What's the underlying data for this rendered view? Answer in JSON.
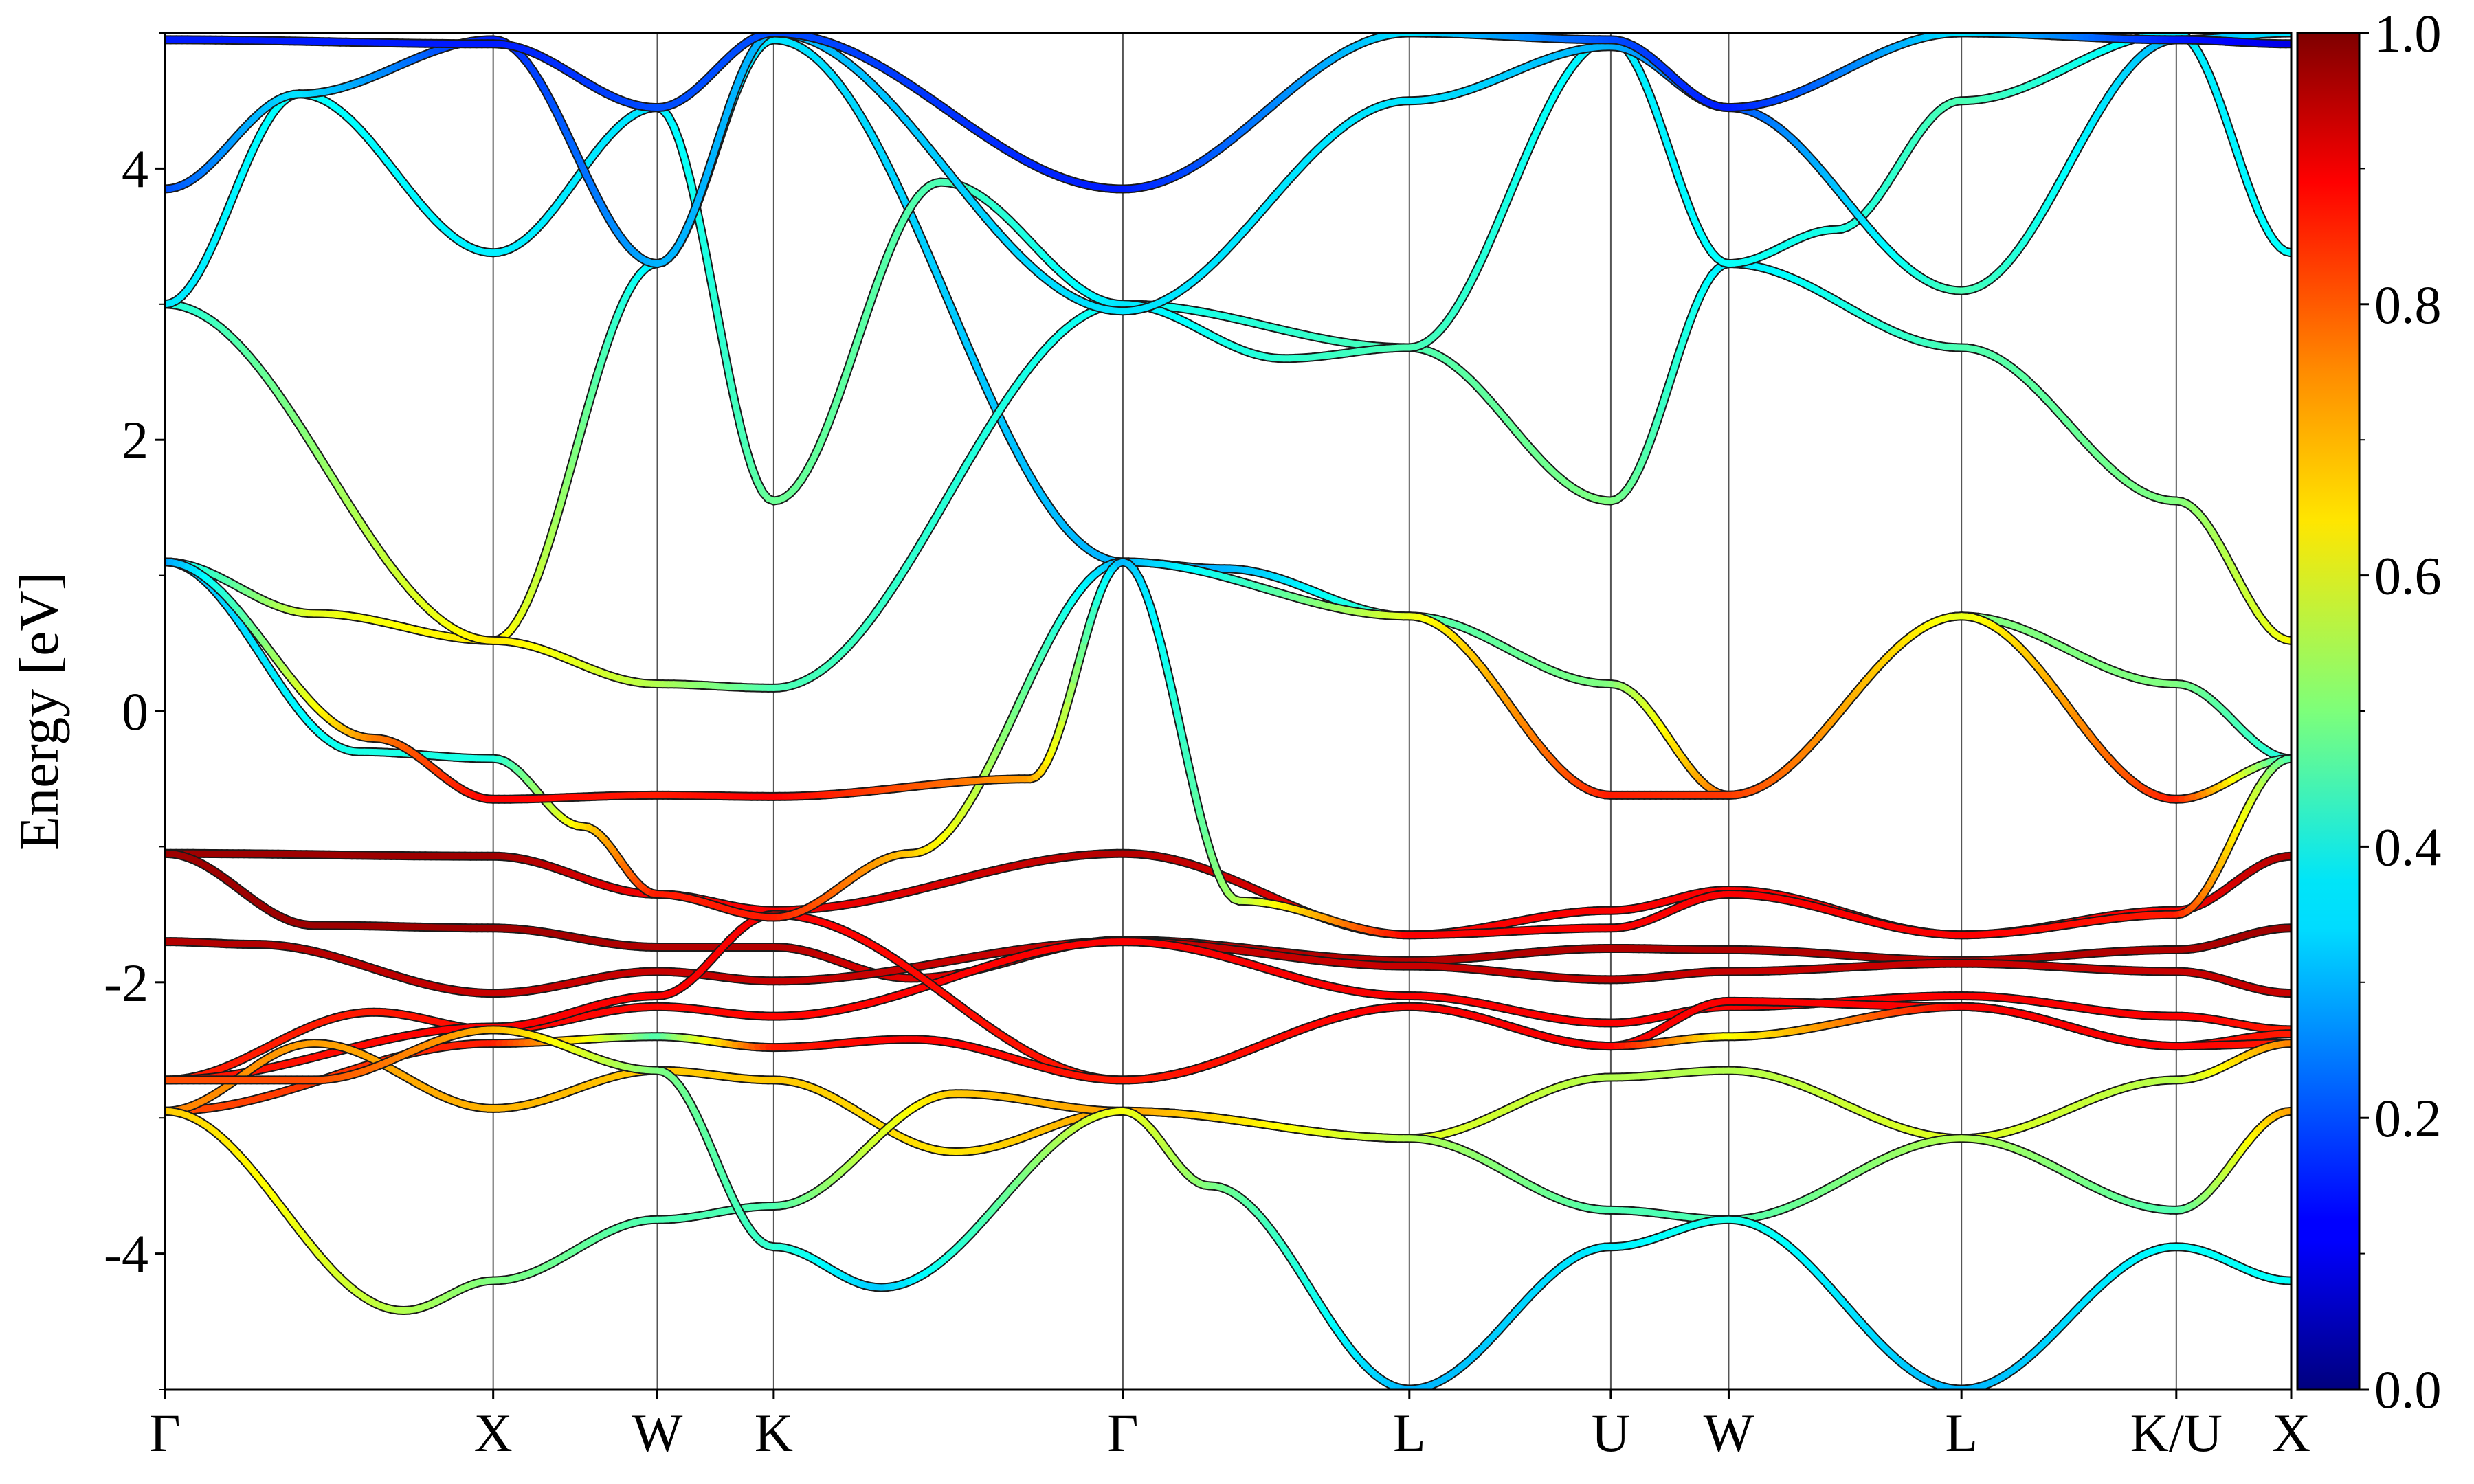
{
  "chart_data": {
    "type": "line",
    "title": "",
    "xlabel": "",
    "ylabel": "Energy [eV]",
    "xlim": [
      0,
      14.25
    ],
    "ylim": [
      -5,
      5
    ],
    "yticks": [
      -4,
      -2,
      0,
      2,
      4
    ],
    "yticklabels": [
      "-4",
      "-2",
      "0",
      "2",
      "4"
    ],
    "kpoints": [
      {
        "label": "Γ",
        "x": 0
      },
      {
        "label": "X",
        "x": 2.2
      },
      {
        "label": "W",
        "x": 3.3
      },
      {
        "label": "K",
        "x": 4.08
      },
      {
        "label": "Γ",
        "x": 6.42
      },
      {
        "label": "L",
        "x": 8.34
      },
      {
        "label": "U",
        "x": 9.69
      },
      {
        "label": "W",
        "x": 10.48
      },
      {
        "label": "L",
        "x": 12.04
      },
      {
        "label": "K/U",
        "x": 13.48
      },
      {
        "label": "X",
        "x": 14.25
      }
    ],
    "colorbar": {
      "colormap": "jet",
      "range": [
        0,
        1
      ],
      "ticks": [
        0.0,
        0.2,
        0.4,
        0.6,
        0.8,
        1.0
      ],
      "ticklabels": [
        "0.0",
        "0.2",
        "0.4",
        "0.6",
        "0.8",
        "1.0"
      ]
    },
    "grid": false,
    "series": [
      {
        "x": [
          0,
          2.2,
          3.3,
          4.08,
          6.42,
          8.34,
          9.69,
          10.48,
          12.04,
          13.48,
          14.25
        ],
        "y": [
          -1.05,
          -1.07,
          -1.35,
          -1.47,
          -1.05,
          -1.65,
          -1.47,
          -1.32,
          -1.65,
          -1.47,
          -1.07
        ],
        "c": [
          0.97,
          0.97,
          0.88,
          0.88,
          0.95,
          0.88,
          0.88,
          0.88,
          0.88,
          0.88,
          0.95
        ]
      },
      {
        "x": [
          0,
          1.0,
          2.2,
          3.3,
          4.08,
          5.0,
          6.42,
          8.34,
          9.69,
          10.48,
          12.04,
          13.48,
          14.25
        ],
        "y": [
          -1.05,
          -1.58,
          -1.6,
          -1.74,
          -1.74,
          -1.97,
          -1.69,
          -1.84,
          -1.75,
          -1.76,
          -1.84,
          -1.76,
          -1.6
        ],
        "c": [
          0.97,
          0.97,
          0.97,
          0.95,
          0.95,
          0.9,
          0.95,
          0.95,
          0.95,
          0.95,
          0.95,
          0.95,
          0.97
        ]
      },
      {
        "x": [
          0,
          0.6,
          2.2,
          3.3,
          4.08,
          6.42,
          8.34,
          9.69,
          10.48,
          12.04,
          13.48,
          14.25
        ],
        "y": [
          -1.7,
          -1.72,
          -2.08,
          -1.92,
          -1.99,
          -1.7,
          -1.88,
          -1.98,
          -1.92,
          -1.86,
          -1.92,
          -2.08
        ],
        "c": [
          0.95,
          0.95,
          0.93,
          0.93,
          0.93,
          0.93,
          0.93,
          0.93,
          0.93,
          0.93,
          0.93,
          0.93
        ]
      },
      {
        "x": [
          0,
          1.4,
          2.2,
          3.3,
          4.08,
          6.42,
          8.34,
          9.69,
          10.48,
          12.04,
          13.48,
          14.25
        ],
        "y": [
          -2.72,
          -2.22,
          -2.35,
          -2.18,
          -2.25,
          -1.7,
          -2.1,
          -2.3,
          -2.18,
          -2.1,
          -2.25,
          -2.35
        ],
        "c": [
          0.85,
          0.85,
          0.87,
          0.87,
          0.87,
          0.88,
          0.88,
          0.88,
          0.88,
          0.88,
          0.88,
          0.85
        ]
      },
      {
        "x": [
          0,
          2.2,
          3.3,
          4.08,
          6.42,
          8.34,
          9.69,
          10.48,
          12.04,
          13.48,
          14.25
        ],
        "y": [
          -2.72,
          -2.33,
          -2.1,
          -1.5,
          -2.72,
          -2.18,
          -2.47,
          -2.14,
          -2.18,
          -2.47,
          -2.38
        ],
        "c": [
          0.85,
          0.88,
          0.88,
          0.88,
          0.85,
          0.88,
          0.88,
          0.88,
          0.88,
          0.88,
          0.85
        ]
      },
      {
        "x": [
          0,
          2.2,
          3.3,
          4.08,
          5.0,
          6.42,
          8.34,
          9.69,
          10.48,
          12.04,
          13.48,
          14.25
        ],
        "y": [
          -2.95,
          -2.45,
          -2.4,
          -2.48,
          -2.42,
          -2.72,
          -2.18,
          -2.47,
          -2.4,
          -2.18,
          -2.47,
          -2.45
        ],
        "c": [
          0.8,
          0.85,
          0.45,
          0.85,
          0.88,
          0.85,
          0.88,
          0.88,
          0.62,
          0.88,
          0.88,
          0.85
        ]
      },
      {
        "x": [
          0,
          1.0,
          2.2,
          3.3,
          4.08,
          5.3,
          6.42,
          8.34,
          9.69,
          10.48,
          12.04,
          13.48,
          14.25
        ],
        "y": [
          -2.95,
          -2.45,
          -2.93,
          -2.65,
          -2.72,
          -3.25,
          -2.95,
          -3.15,
          -2.7,
          -2.65,
          -3.15,
          -2.72,
          -2.45
        ],
        "c": [
          0.75,
          0.72,
          0.7,
          0.68,
          0.68,
          0.65,
          0.72,
          0.6,
          0.55,
          0.55,
          0.6,
          0.55,
          0.75
        ]
      },
      {
        "x": [
          0,
          1.6,
          2.2,
          3.3,
          4.08,
          5.3,
          6.42,
          8.34,
          9.69,
          10.48,
          12.04,
          13.48,
          14.25
        ],
        "y": [
          -2.95,
          -4.42,
          -4.2,
          -3.75,
          -3.65,
          -2.82,
          -2.95,
          -3.15,
          -3.68,
          -3.75,
          -3.15,
          -3.68,
          -2.95
        ],
        "c": [
          0.68,
          0.55,
          0.5,
          0.45,
          0.45,
          0.68,
          0.72,
          0.55,
          0.45,
          0.45,
          0.55,
          0.45,
          0.72
        ]
      },
      {
        "x": [
          0,
          1.0,
          2.2,
          3.3,
          4.08,
          4.8,
          6.42,
          7.0,
          8.34,
          9.69,
          10.48,
          12.04,
          13.48,
          14.25
        ],
        "y": [
          -2.72,
          -2.72,
          -2.35,
          -2.65,
          -3.95,
          -4.25,
          -2.95,
          -3.5,
          -5.0,
          -3.95,
          -3.75,
          -5.0,
          -3.95,
          -4.2
        ],
        "c": [
          0.8,
          0.8,
          0.7,
          0.5,
          0.42,
          0.32,
          0.62,
          0.5,
          0.3,
          0.36,
          0.4,
          0.3,
          0.38,
          0.38
        ]
      },
      {
        "x": [
          0,
          1.0,
          2.2,
          3.3,
          4.08,
          6.42,
          7.1,
          8.34,
          9.69,
          10.48,
          12.04,
          13.48,
          14.25
        ],
        "y": [
          1.1,
          0.72,
          0.52,
          3.3,
          4.95,
          1.1,
          1.05,
          0.7,
          0.2,
          -0.62,
          0.7,
          0.2,
          -0.35
        ],
        "c": [
          0.35,
          0.6,
          0.65,
          0.35,
          0.35,
          0.3,
          0.3,
          0.45,
          0.5,
          0.78,
          0.5,
          0.5,
          0.4
        ]
      },
      {
        "x": [
          0,
          1.3,
          2.2,
          2.8,
          3.3,
          4.08,
          5.0,
          6.42,
          8.34,
          9.69,
          10.48,
          12.04,
          13.48,
          14.25
        ],
        "y": [
          1.1,
          -0.3,
          -0.35,
          -0.85,
          -1.35,
          -1.52,
          -1.05,
          1.1,
          0.7,
          -0.62,
          -0.62,
          0.7,
          -0.65,
          -0.35
        ],
        "c": [
          0.3,
          0.4,
          0.4,
          0.65,
          0.85,
          0.85,
          0.68,
          0.3,
          0.6,
          0.85,
          0.82,
          0.6,
          0.85,
          0.4
        ]
      },
      {
        "x": [
          0,
          1.4,
          2.2,
          3.3,
          4.08,
          5.8,
          6.42,
          7.2,
          8.34,
          9.69,
          10.48,
          12.04,
          13.48,
          14.25
        ],
        "y": [
          1.1,
          -0.2,
          -0.65,
          -0.62,
          -0.63,
          -0.5,
          1.1,
          -1.4,
          -1.65,
          -1.6,
          -1.35,
          -1.65,
          -1.5,
          -0.35
        ],
        "c": [
          0.28,
          0.75,
          0.88,
          0.85,
          0.88,
          0.72,
          0.3,
          0.55,
          0.88,
          0.88,
          0.88,
          0.88,
          0.85,
          0.45
        ]
      },
      {
        "x": [
          0,
          2.2,
          3.3,
          4.08,
          6.42,
          8.34,
          9.69,
          10.48,
          12.04,
          13.48,
          14.25
        ],
        "y": [
          3.0,
          0.52,
          0.2,
          0.17,
          3.0,
          2.68,
          1.55,
          3.3,
          2.68,
          1.55,
          0.52
        ],
        "c": [
          0.4,
          0.65,
          0.55,
          0.45,
          0.38,
          0.45,
          0.5,
          0.35,
          0.45,
          0.5,
          0.62
        ]
      },
      {
        "x": [
          0,
          0.9,
          2.2,
          3.3,
          4.08,
          5.2,
          6.42,
          7.5,
          8.34,
          9.69,
          10.48,
          11.2,
          12.04,
          13.48,
          14.25
        ],
        "y": [
          3.0,
          4.55,
          3.38,
          4.45,
          1.55,
          3.9,
          3.0,
          2.6,
          2.68,
          4.95,
          3.3,
          3.55,
          4.5,
          5.0,
          3.38
        ],
        "c": [
          0.35,
          0.38,
          0.36,
          0.35,
          0.48,
          0.45,
          0.35,
          0.42,
          0.45,
          0.35,
          0.38,
          0.4,
          0.45,
          0.35,
          0.38
        ]
      },
      {
        "x": [
          0,
          0.9,
          2.2,
          3.3,
          4.08,
          6.42,
          8.34,
          9.69,
          10.48,
          12.04,
          13.48,
          14.25
        ],
        "y": [
          3.85,
          4.55,
          4.95,
          3.3,
          5.0,
          2.95,
          4.5,
          4.9,
          4.45,
          3.1,
          4.95,
          5.0
        ],
        "c": [
          0.2,
          0.35,
          0.15,
          0.3,
          0.3,
          0.35,
          0.35,
          0.3,
          0.2,
          0.45,
          0.3,
          0.35
        ]
      },
      {
        "x": [
          0,
          2.2,
          3.3,
          4.08,
          6.42,
          8.34,
          9.69,
          10.48,
          12.04,
          13.48,
          14.25
        ],
        "y": [
          4.95,
          4.92,
          4.45,
          5.0,
          3.85,
          5.0,
          4.95,
          4.45,
          5.0,
          4.95,
          4.92
        ],
        "c": [
          0.15,
          0.15,
          0.2,
          0.2,
          0.15,
          0.35,
          0.2,
          0.15,
          0.35,
          0.15,
          0.1
        ]
      }
    ]
  }
}
